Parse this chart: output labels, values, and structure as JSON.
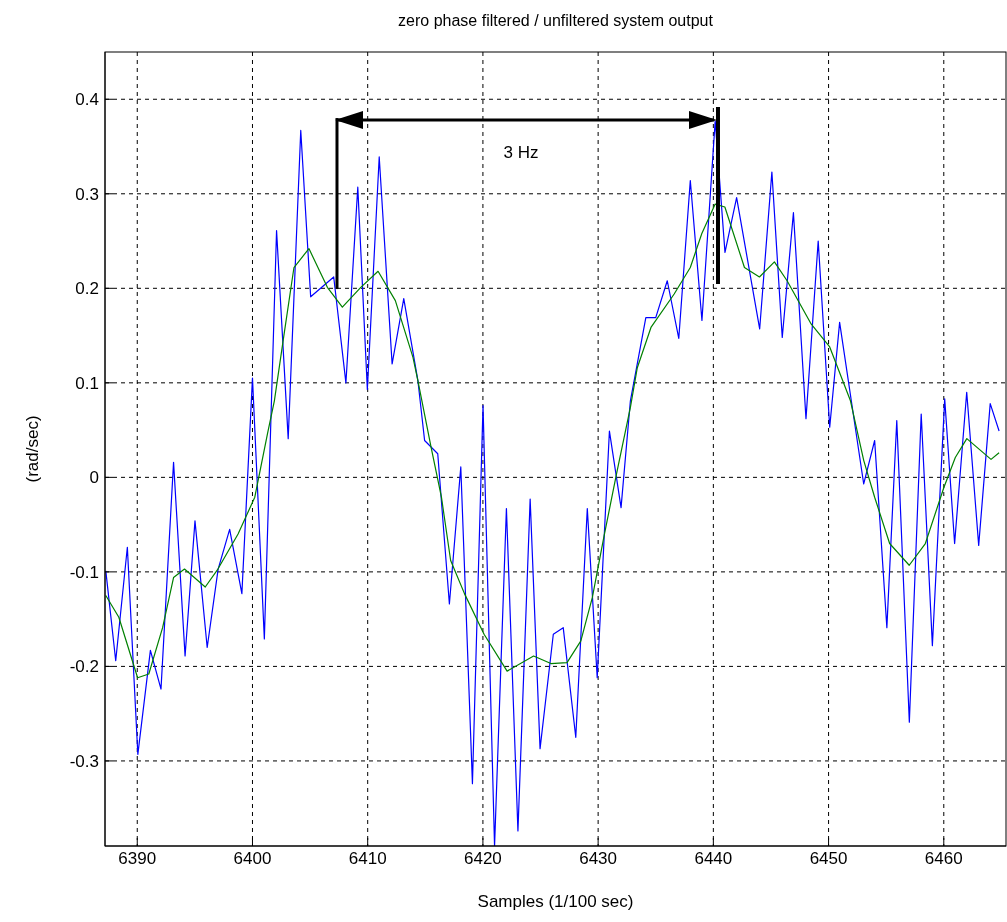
{
  "chart_data": {
    "type": "line",
    "title": "zero phase filtered / unfiltered system output",
    "xlabel": "Samples (1/100 sec)",
    "ylabel": "(rad/sec)",
    "xlim": [
      6387.2,
      6465.4
    ],
    "ylim": [
      -0.39,
      0.45
    ],
    "xticks": [
      6390,
      6400,
      6410,
      6420,
      6430,
      6440,
      6450,
      6460
    ],
    "yticks": [
      -0.3,
      -0.2,
      -0.1,
      0,
      0.1,
      0.2,
      0.3,
      0.4
    ],
    "grid": true,
    "marker": "none",
    "line_style": "solid",
    "annotations": [
      "3 Hz"
    ],
    "series": [
      {
        "color": "#0000ff",
        "x": [
          6387.27,
          6388.13,
          6389.14,
          6390.05,
          6391.14,
          6392.06,
          6393.15,
          6394.15,
          6395.01,
          6396.07,
          6397.02,
          6398.02,
          6399.08,
          6400.0,
          6401.03,
          6402.09,
          6403.1,
          6404.19,
          6405.05,
          6407.05,
          6408.11,
          6409.14,
          6409.97,
          6411.0,
          6412.12,
          6413.13,
          6414.36,
          6414.94,
          6416.08,
          6417.09,
          6418.08,
          6419.09,
          6420.01,
          6421.01,
          6422.04,
          6423.04,
          6424.1,
          6424.96,
          6426.11,
          6426.97,
          6428.06,
          6429.06,
          6429.92,
          6430.98,
          6431.99,
          6432.8,
          6434.14,
          6435.0,
          6436.0,
          6437.0,
          6438.0,
          6439.01,
          6440.16,
          6441.01,
          6442.02,
          6444.02,
          6445.08,
          6445.98,
          6446.95,
          6448.04,
          6449.1,
          6450.1,
          6450.96,
          6453.05,
          6454.0,
          6455.06,
          6455.92,
          6457.01,
          6458.04,
          6459.01,
          6460.08,
          6460.94,
          6461.99,
          6463.03,
          6464.03,
          6464.8
        ],
        "values": [
          -0.099,
          -0.194,
          -0.074,
          -0.293,
          -0.183,
          -0.224,
          0.016,
          -0.189,
          -0.046,
          -0.18,
          -0.097,
          -0.055,
          -0.123,
          0.105,
          -0.171,
          0.261,
          0.041,
          0.367,
          0.191,
          0.212,
          0.1,
          0.307,
          0.093,
          0.339,
          0.12,
          0.189,
          0.102,
          0.039,
          0.025,
          -0.134,
          0.011,
          -0.324,
          0.076,
          -0.39,
          -0.033,
          -0.374,
          -0.023,
          -0.287,
          -0.166,
          -0.159,
          -0.275,
          -0.033,
          -0.212,
          0.049,
          -0.032,
          0.081,
          0.169,
          0.169,
          0.208,
          0.147,
          0.314,
          0.166,
          0.377,
          0.238,
          0.296,
          0.157,
          0.323,
          0.148,
          0.28,
          0.062,
          0.25,
          0.053,
          0.164,
          -0.007,
          0.039,
          -0.159,
          0.06,
          -0.259,
          0.067,
          -0.178,
          0.083,
          -0.07,
          0.09,
          -0.072,
          0.078,
          0.049
        ]
      },
      {
        "color": "#008000",
        "x": [
          6387.27,
          6388.4,
          6390.03,
          6391.0,
          6392.2,
          6393.15,
          6394.1,
          6395.9,
          6397.0,
          6398.75,
          6400.2,
          6401.3,
          6401.9,
          6402.75,
          6403.6,
          6404.9,
          6406.5,
          6407.8,
          6409.4,
          6410.9,
          6412.4,
          6413.93,
          6414.36,
          6415.5,
          6416.4,
          6417.2,
          6418.4,
          6420.1,
          6422.1,
          6424.4,
          6425.9,
          6427.3,
          6428.5,
          6429.5,
          6430.5,
          6431.6,
          6432.8,
          6433.4,
          6434.6,
          6436.6,
          6438.0,
          6439.0,
          6440.15,
          6441.0,
          6442.7,
          6444.0,
          6445.3,
          6446.4,
          6448.5,
          6450.1,
          6451.9,
          6453.05,
          6454.0,
          6455.3,
          6457.0,
          6458.4,
          6460.0,
          6461.0,
          6462.0,
          6464.1,
          6464.8
        ],
        "values": [
          -0.125,
          -0.148,
          -0.212,
          -0.208,
          -0.159,
          -0.106,
          -0.097,
          -0.116,
          -0.097,
          -0.06,
          -0.021,
          0.046,
          0.081,
          0.152,
          0.222,
          0.242,
          0.201,
          0.18,
          0.201,
          0.218,
          0.187,
          0.127,
          0.102,
          0.032,
          -0.021,
          -0.088,
          -0.123,
          -0.166,
          -0.205,
          -0.189,
          -0.197,
          -0.196,
          -0.173,
          -0.127,
          -0.063,
          0.004,
          0.074,
          0.116,
          0.159,
          0.194,
          0.222,
          0.258,
          0.289,
          0.286,
          0.222,
          0.212,
          0.228,
          0.208,
          0.162,
          0.138,
          0.081,
          0.018,
          -0.021,
          -0.07,
          -0.093,
          -0.07,
          -0.011,
          0.021,
          0.041,
          0.019,
          0.026
        ]
      }
    ]
  }
}
